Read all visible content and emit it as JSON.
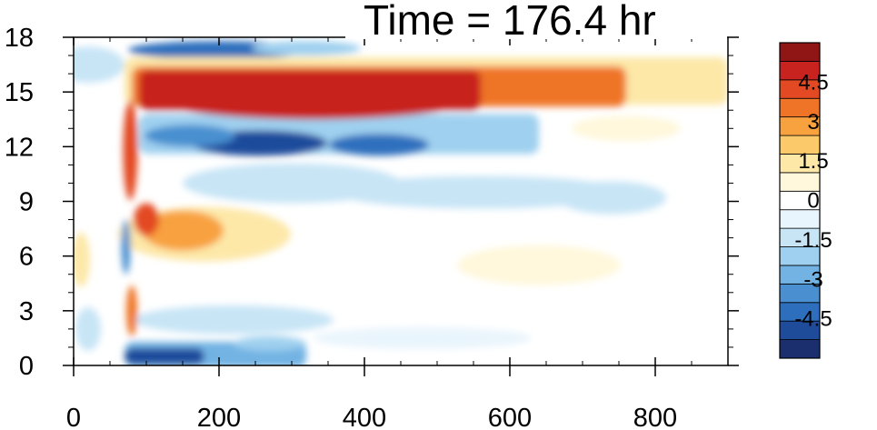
{
  "chart_data": {
    "type": "heatmap",
    "title": "Time = 176.4 hr",
    "xlabel": "",
    "ylabel": "",
    "xlim": [
      0,
      900
    ],
    "ylim": [
      0,
      18
    ],
    "x_ticks": [
      "0",
      "200",
      "400",
      "600",
      "800"
    ],
    "y_ticks": [
      "0",
      "3",
      "6",
      "9",
      "12",
      "15",
      "18"
    ],
    "colorbar": {
      "range": [
        -6,
        6
      ],
      "step": 0.75,
      "tick_labels": [
        "4.5",
        "3",
        "1.5",
        "0",
        "-1.5",
        "-3",
        "-4.5"
      ],
      "colors": [
        "#1b2f6e",
        "#1f4b9b",
        "#2d6fbd",
        "#4a90d0",
        "#72b3e3",
        "#9fd0ef",
        "#c8e5f6",
        "#e9f5fc",
        "#ffffff",
        "#fff8dc",
        "#fde8a8",
        "#fbc86a",
        "#f8a13f",
        "#ef7428",
        "#e34a24",
        "#c8231f",
        "#901616"
      ]
    },
    "features": [
      {
        "name": "upper positive band",
        "x_start": 70,
        "x_end": 900,
        "y_start": 15.8,
        "y_end": 17.0,
        "value": 5.5
      },
      {
        "name": "upper negative band",
        "x_start": 90,
        "x_end": 620,
        "y_start": 12.2,
        "y_end": 12.4,
        "value": -4.5
      },
      {
        "name": "mid positive blob",
        "x_center": 150,
        "y_center": 7.2,
        "value": 3.5
      },
      {
        "name": "surface negative band",
        "x_start": 70,
        "x_end": 320,
        "y_center": 0.6,
        "value": -5.0
      }
    ]
  }
}
